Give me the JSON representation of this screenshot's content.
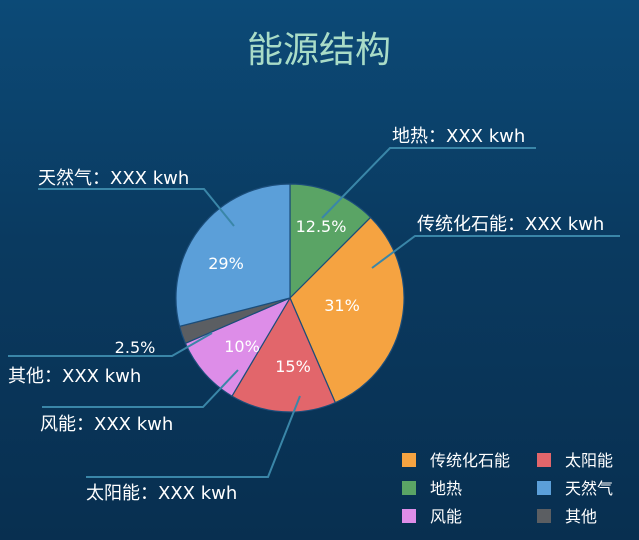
{
  "chart_data": {
    "type": "pie",
    "title": "能源结构",
    "slices": [
      {
        "label": "地热",
        "value": 12.5,
        "pct_label": "12.5%",
        "callout": "地热：XXX kwh",
        "color": "#5aa465"
      },
      {
        "label": "传统化石能",
        "value": 31,
        "pct_label": "31%",
        "callout": "传统化石能：XXX kwh",
        "color": "#f5a341"
      },
      {
        "label": "太阳能",
        "value": 15,
        "pct_label": "15%",
        "callout": "太阳能：XXX kwh",
        "color": "#e2666b"
      },
      {
        "label": "风能",
        "value": 10,
        "pct_label": "10%",
        "callout": "风能：XXX kwh",
        "color": "#dd8de8"
      },
      {
        "label": "其他",
        "value": 2.5,
        "pct_label": "2.5%",
        "callout": "其他：XXX kwh",
        "color": "#5b5e62"
      },
      {
        "label": "天然气",
        "value": 29,
        "pct_label": "29%",
        "callout": "天然气：XXX kwh",
        "color": "#5b9fd9"
      }
    ],
    "legend": {
      "placement": "bottom-right",
      "items": [
        {
          "label": "传统化石能",
          "color": "#f5a341"
        },
        {
          "label": "太阳能",
          "color": "#e2666b"
        },
        {
          "label": "地热",
          "color": "#5aa465"
        },
        {
          "label": "天然气",
          "color": "#5b9fd9"
        },
        {
          "label": "风能",
          "color": "#dd8de8"
        },
        {
          "label": "其他",
          "color": "#5b5e62"
        }
      ]
    }
  }
}
